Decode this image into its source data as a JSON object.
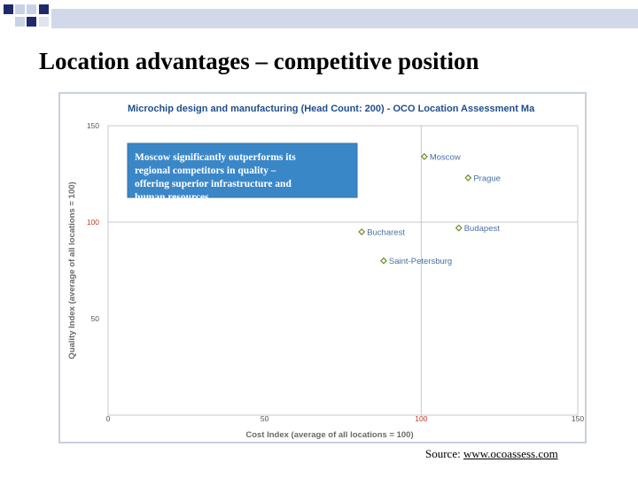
{
  "slide": {
    "title": "Location advantages – competitive position",
    "source_prefix": "Source: ",
    "source_link": "www.ocoassess.com"
  },
  "colors": {
    "accent_navy": "#1f2a6b",
    "bar_light": "#c9d1e6",
    "chart_title": "#1f4e8c",
    "point": "#6b8e23",
    "callout_bg": "#3a87c8",
    "callout_text": "#ffffff",
    "axis_label": "#6a6a6a",
    "highlight_tick": "#c0392b"
  },
  "chart_data": {
    "type": "scatter",
    "title": "Microchip design and manufacturing (Head Count: 200) - OCO Location Assessment Ma",
    "xlabel": "Cost Index (average of all locations = 100)",
    "ylabel": "Quality Index (average of all locations = 100)",
    "xlim": [
      0,
      150
    ],
    "ylim": [
      0,
      150
    ],
    "x_ticks": [
      "0",
      "50",
      "100",
      "150"
    ],
    "y_ticks": [
      "150",
      "100",
      "50"
    ],
    "reference_lines": {
      "x": 100,
      "y": 100
    },
    "grid": false,
    "points": [
      {
        "label": "Moscow",
        "x": 101,
        "y": 134
      },
      {
        "label": "Prague",
        "x": 115,
        "y": 123
      },
      {
        "label": "Budapest",
        "x": 112,
        "y": 97
      },
      {
        "label": "Bucharest",
        "x": 81,
        "y": 95
      },
      {
        "label": "Saint-Petersburg",
        "x": 88,
        "y": 80
      }
    ],
    "annotation": "Moscow significantly outperforms its regional competitors in quality – offering superior infrastructure and human resources"
  }
}
